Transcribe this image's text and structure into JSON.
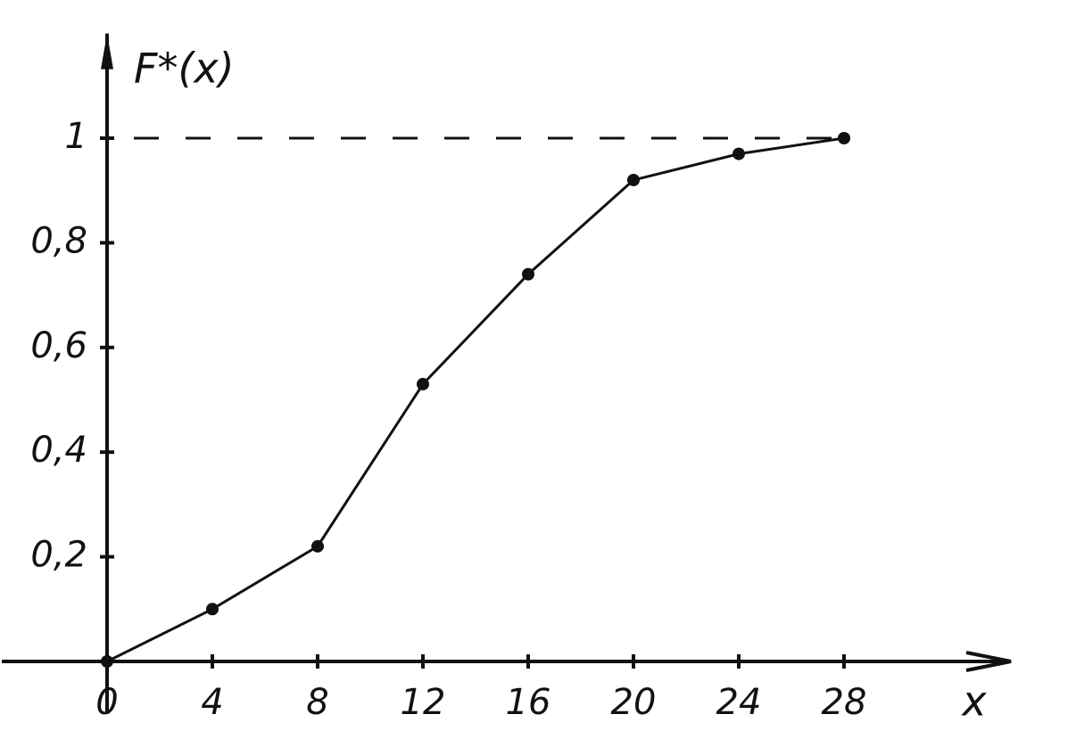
{
  "chart_data": {
    "type": "line",
    "x_label": "x",
    "y_label": "F*(x)",
    "x": [
      0,
      4,
      8,
      12,
      16,
      20,
      24,
      28
    ],
    "values": [
      0,
      0.1,
      0.22,
      0.53,
      0.74,
      0.92,
      0.97,
      1.0
    ],
    "color": "#111111",
    "xlim": [
      -4,
      34
    ],
    "ylim": [
      -0.1,
      1.2
    ],
    "xticks": [
      0,
      4,
      8,
      12,
      16,
      20,
      24,
      28
    ],
    "yticks": [
      {
        "value": 0.2,
        "label": "0,2"
      },
      {
        "value": 0.4,
        "label": "0,4"
      },
      {
        "value": 0.6,
        "label": "0,6"
      },
      {
        "value": 0.8,
        "label": "0,8"
      },
      1
    ],
    "reference_line": 1
  }
}
